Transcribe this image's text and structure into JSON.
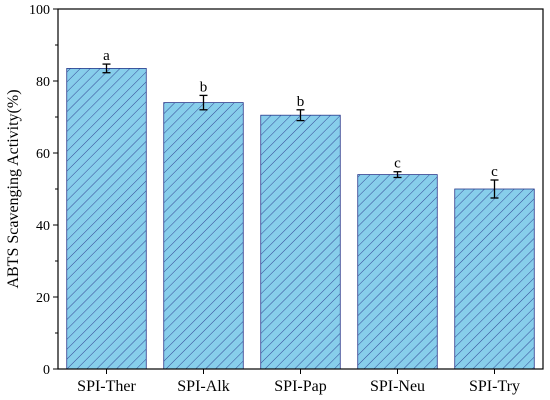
{
  "chart_data": {
    "type": "bar",
    "title": "",
    "xlabel": "",
    "ylabel": "ABTS Scavenging Activity(%)",
    "ylim": [
      0,
      100
    ],
    "yticks": [
      0,
      20,
      40,
      60,
      80,
      100
    ],
    "grid": false,
    "categories": [
      "SPI-Ther",
      "SPI-Alk",
      "SPI-Pap",
      "SPI-Neu",
      "SPI-Try"
    ],
    "values": [
      83.5,
      74.0,
      70.5,
      54.0,
      50.0
    ],
    "errors": [
      1.2,
      2.0,
      1.5,
      0.8,
      2.5
    ],
    "significance": [
      "a",
      "b",
      "b",
      "c",
      "c"
    ],
    "bar_color": "#87ceeb",
    "hatch_color": "#2a3a8c"
  }
}
